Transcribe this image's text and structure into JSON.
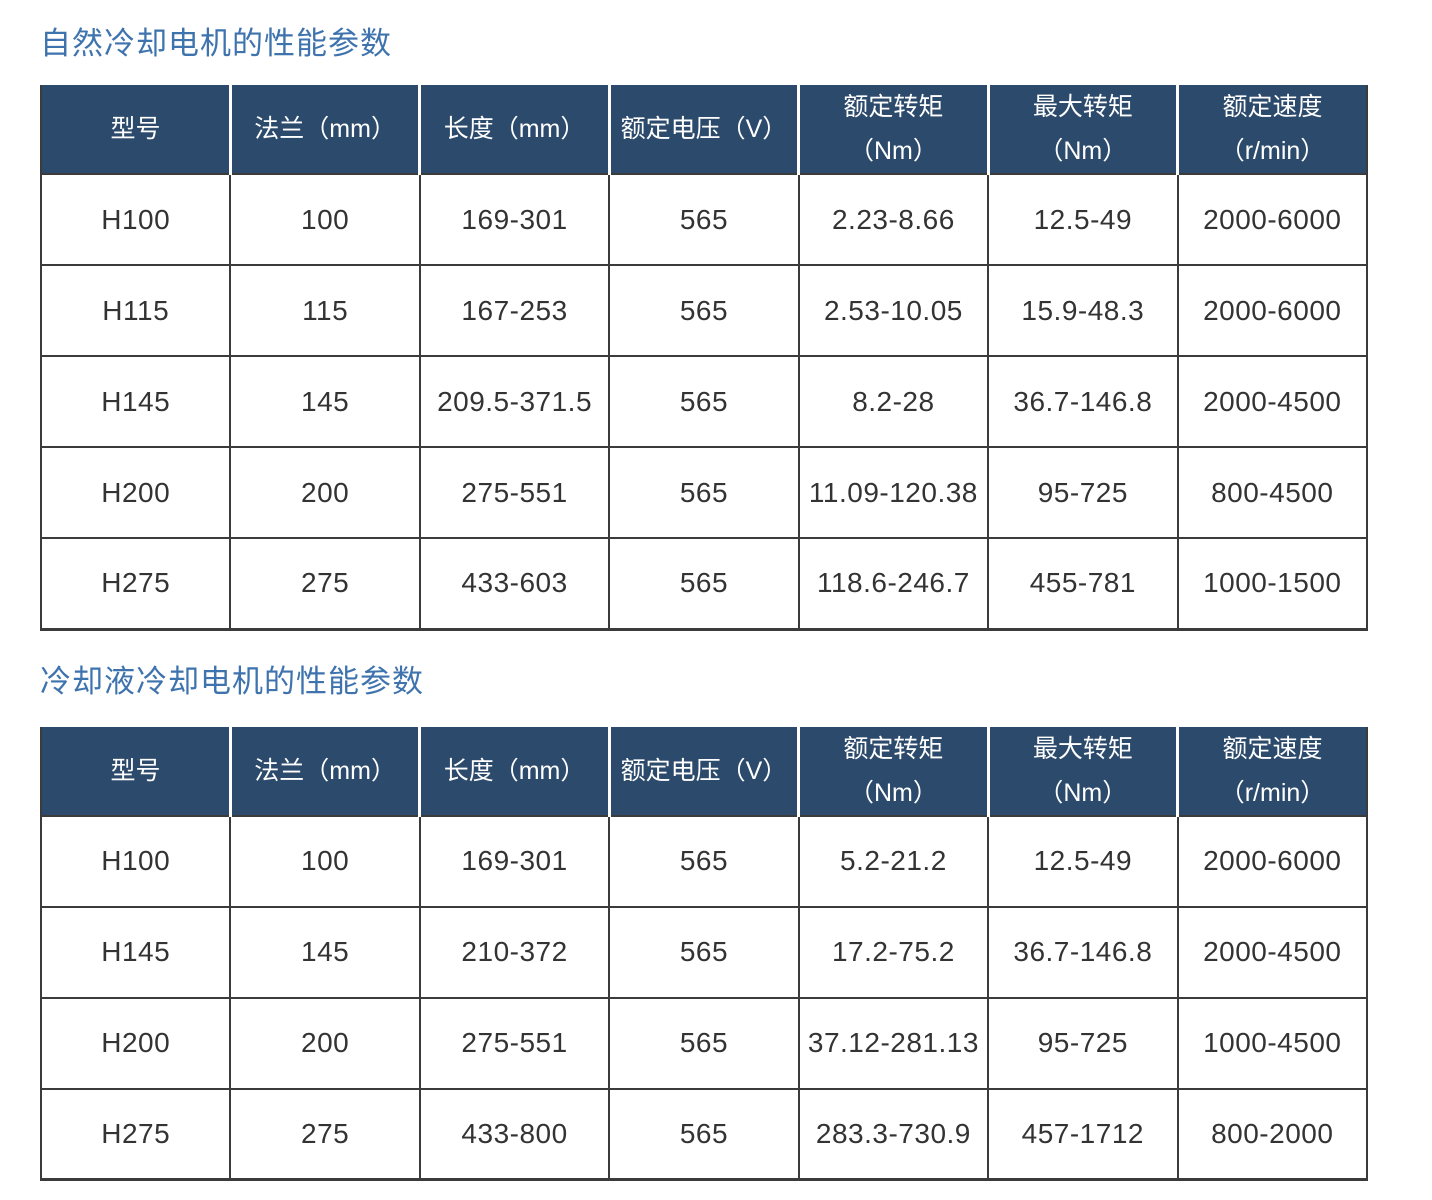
{
  "colors": {
    "title": "#3E73AE",
    "header_bg": "#2C4A6B",
    "header_text": "#FFFFFF",
    "cell_text": "#333333",
    "border": "#3B3B3B"
  },
  "sections": [
    {
      "title": "自然冷却电机的性能参数",
      "table": {
        "headers": [
          {
            "line1": "型号",
            "line2": ""
          },
          {
            "line1": "法兰（mm）",
            "line2": ""
          },
          {
            "line1": "长度（mm）",
            "line2": ""
          },
          {
            "line1": "额定电压（V）",
            "line2": ""
          },
          {
            "line1": "额定转矩",
            "line2": "（Nm）"
          },
          {
            "line1": "最大转矩",
            "line2": "（Nm）"
          },
          {
            "line1": "额定速度",
            "line2": "（r/min）"
          }
        ],
        "rows": [
          [
            "H100",
            "100",
            "169-301",
            "565",
            "2.23-8.66",
            "12.5-49",
            "2000-6000"
          ],
          [
            "H115",
            "115",
            "167-253",
            "565",
            "2.53-10.05",
            "15.9-48.3",
            "2000-6000"
          ],
          [
            "H145",
            "145",
            "209.5-371.5",
            "565",
            "8.2-28",
            "36.7-146.8",
            "2000-4500"
          ],
          [
            "H200",
            "200",
            "275-551",
            "565",
            "11.09-120.38",
            "95-725",
            "800-4500"
          ],
          [
            "H275",
            "275",
            "433-603",
            "565",
            "118.6-246.7",
            "455-781",
            "1000-1500"
          ]
        ]
      }
    },
    {
      "title": "冷却液冷却电机的性能参数",
      "table": {
        "headers": [
          {
            "line1": "型号",
            "line2": ""
          },
          {
            "line1": "法兰（mm）",
            "line2": ""
          },
          {
            "line1": "长度（mm）",
            "line2": ""
          },
          {
            "line1": "额定电压（V）",
            "line2": ""
          },
          {
            "line1": "额定转矩",
            "line2": "（Nm）"
          },
          {
            "line1": "最大转矩",
            "line2": "（Nm）"
          },
          {
            "line1": "额定速度",
            "line2": "（r/min）"
          }
        ],
        "rows": [
          [
            "H100",
            "100",
            "169-301",
            "565",
            "5.2-21.2",
            "12.5-49",
            "2000-6000"
          ],
          [
            "H145",
            "145",
            "210-372",
            "565",
            "17.2-75.2",
            "36.7-146.8",
            "2000-4500"
          ],
          [
            "H200",
            "200",
            "275-551",
            "565",
            "37.12-281.13",
            "95-725",
            "1000-4500"
          ],
          [
            "H275",
            "275",
            "433-800",
            "565",
            "283.3-730.9",
            "457-1712",
            "800-2000"
          ]
        ]
      }
    }
  ]
}
